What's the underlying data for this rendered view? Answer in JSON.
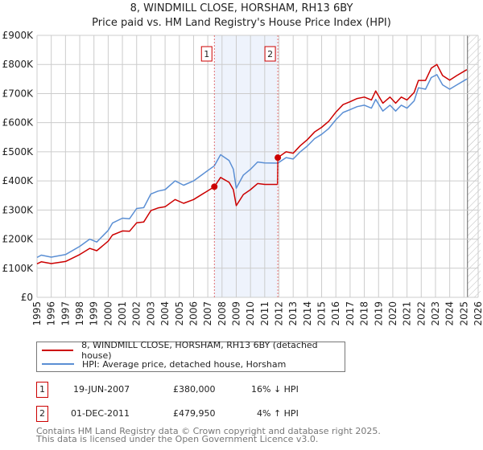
{
  "title": "8, WINDMILL CLOSE, HORSHAM, RH13 6BY",
  "subtitle": "Price paid vs. HM Land Registry's House Price Index (HPI)",
  "chart_data": {
    "type": "line",
    "title": "8, WINDMILL CLOSE, HORSHAM, RH13 6BY",
    "xlabel": "",
    "ylabel": "",
    "xlim": [
      1995,
      2026
    ],
    "ylim": [
      0,
      900000
    ],
    "grid": true,
    "x_ticks": [
      "1995",
      "1996",
      "1997",
      "1998",
      "1999",
      "2000",
      "2001",
      "2002",
      "2003",
      "2004",
      "2005",
      "2006",
      "2007",
      "2008",
      "2009",
      "2010",
      "2011",
      "2012",
      "2013",
      "2014",
      "2015",
      "2016",
      "2017",
      "2018",
      "2019",
      "2020",
      "2021",
      "2022",
      "2023",
      "2024",
      "2025",
      "2026"
    ],
    "y_ticks": [
      {
        "v": 0,
        "label": "£0"
      },
      {
        "v": 100000,
        "label": "£100K"
      },
      {
        "v": 200000,
        "label": "£200K"
      },
      {
        "v": 300000,
        "label": "£300K"
      },
      {
        "v": 400000,
        "label": "£400K"
      },
      {
        "v": 500000,
        "label": "£500K"
      },
      {
        "v": 600000,
        "label": "£600K"
      },
      {
        "v": 700000,
        "label": "£700K"
      },
      {
        "v": 800000,
        "label": "£800K"
      },
      {
        "v": 900000,
        "label": "£900K"
      }
    ],
    "shaded_range": [
      2007.46,
      2011.92
    ],
    "forecast_hatch_from": 2025.25,
    "series": [
      {
        "name": "8, WINDMILL CLOSE, HORSHAM, RH13 6BY (detached house)",
        "color": "#cc0000",
        "x": [
          1995.0,
          1995.3,
          1996,
          1997,
          1998,
          1998.7,
          1999.2,
          2000,
          2000.3,
          2001,
          2001.5,
          2002,
          2002.5,
          2003,
          2003.5,
          2004,
          2004.7,
          2005.3,
          2006,
          2006.7,
          2007.46,
          2007.9,
          2008.5,
          2008.8,
          2009.0,
          2009.5,
          2010,
          2010.5,
          2011,
          2011.9,
          2011.92,
          2012.5,
          2013,
          2013.5,
          2014,
          2014.5,
          2015,
          2015.5,
          2016,
          2016.5,
          2017,
          2017.5,
          2018,
          2018.5,
          2018.8,
          2019.3,
          2019.8,
          2020.2,
          2020.6,
          2021,
          2021.5,
          2021.8,
          2022.3,
          2022.7,
          2023.1,
          2023.5,
          2024,
          2024.5,
          2025.2
        ],
        "y": [
          115000,
          122000,
          116000,
          123000,
          147000,
          168000,
          160000,
          193000,
          214000,
          228000,
          227000,
          256000,
          259000,
          298000,
          307000,
          311000,
          336000,
          323000,
          336000,
          357000,
          380000,
          412000,
          395000,
          370000,
          315000,
          353000,
          370000,
          391000,
          388000,
          388000,
          479950,
          500000,
          495000,
          521000,
          542000,
          568000,
          584000,
          605000,
          636000,
          662000,
          672000,
          683000,
          688000,
          678000,
          709000,
          667000,
          688000,
          667000,
          688000,
          678000,
          704000,
          745000,
          745000,
          787000,
          800000,
          762000,
          746000,
          762000,
          782000
        ]
      },
      {
        "name": "HPI: Average price, detached house, Horsham",
        "color": "#5b8fd4",
        "x": [
          1995.0,
          1995.3,
          1996,
          1997,
          1998,
          1998.7,
          1999.2,
          2000,
          2000.3,
          2001,
          2001.5,
          2002,
          2002.5,
          2003,
          2003.5,
          2004,
          2004.7,
          2005.3,
          2006,
          2006.7,
          2007.46,
          2007.9,
          2008.5,
          2008.8,
          2009.0,
          2009.5,
          2010,
          2010.5,
          2011,
          2011.92,
          2012.5,
          2013,
          2013.5,
          2014,
          2014.5,
          2015,
          2015.5,
          2016,
          2016.5,
          2017,
          2017.5,
          2018,
          2018.5,
          2018.8,
          2019.3,
          2019.8,
          2020.2,
          2020.6,
          2021,
          2021.5,
          2021.8,
          2022.3,
          2022.7,
          2023.1,
          2023.5,
          2024,
          2024.5,
          2025.2
        ],
        "y": [
          137000,
          145000,
          138000,
          147000,
          175000,
          200000,
          190000,
          230000,
          255000,
          272000,
          270000,
          305000,
          308000,
          355000,
          365000,
          370000,
          400000,
          385000,
          400000,
          425000,
          452000,
          490000,
          470000,
          440000,
          375000,
          420000,
          440000,
          465000,
          462000,
          461000,
          480000,
          475000,
          500000,
          520000,
          545000,
          560000,
          580000,
          610000,
          635000,
          645000,
          655000,
          660000,
          650000,
          680000,
          640000,
          660000,
          640000,
          660000,
          650000,
          675000,
          720000,
          715000,
          755000,
          765000,
          730000,
          715000,
          730000,
          750000
        ]
      }
    ],
    "annotations": [
      {
        "label": "1",
        "x": 2007.46,
        "y": 380000
      },
      {
        "label": "2",
        "x": 2011.92,
        "y": 479950
      }
    ]
  },
  "legend": {
    "red_label": "8, WINDMILL CLOSE, HORSHAM, RH13 6BY (detached house)",
    "blue_label": "HPI: Average price, detached house, Horsham"
  },
  "sales": [
    {
      "num": "1",
      "date": "19-JUN-2007",
      "price": "£380,000",
      "hpi": "16% ↓ HPI"
    },
    {
      "num": "2",
      "date": "01-DEC-2011",
      "price": "£479,950",
      "hpi": "4% ↑ HPI"
    }
  ],
  "footer": {
    "line1": "Contains HM Land Registry data © Crown copyright and database right 2025.",
    "line2": "This data is licensed under the Open Government Licence v3.0."
  }
}
